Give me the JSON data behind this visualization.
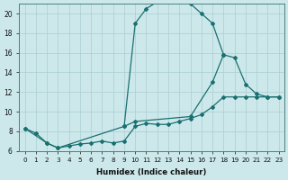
{
  "bg_color": "#cce8eb",
  "line_color": "#1a7070",
  "grid_color": "#aacdd2",
  "xlabel": "Humidex (Indice chaleur)",
  "xlim": [
    -0.5,
    23.5
  ],
  "ylim": [
    6,
    21
  ],
  "yticks": [
    6,
    8,
    10,
    12,
    14,
    16,
    18,
    20
  ],
  "xticks": [
    0,
    1,
    2,
    3,
    4,
    5,
    6,
    7,
    8,
    9,
    10,
    11,
    12,
    13,
    14,
    15,
    16,
    17,
    18,
    19,
    20,
    21,
    22,
    23
  ],
  "line_big_x": [
    9,
    10,
    11,
    12,
    13,
    14,
    15,
    16,
    17,
    18
  ],
  "line_big_y": [
    8.5,
    19.0,
    20.5,
    21.2,
    21.5,
    21.3,
    21.0,
    20.0,
    19.0,
    15.8
  ],
  "line_mid_x": [
    0,
    2,
    3,
    9,
    10,
    15,
    17,
    18,
    19,
    20,
    21,
    22,
    23
  ],
  "line_mid_y": [
    8.3,
    6.8,
    6.3,
    8.5,
    9.0,
    9.5,
    13.0,
    15.8,
    15.5,
    12.8,
    11.8,
    11.5,
    11.5
  ],
  "line_low_x": [
    0,
    1,
    2,
    3,
    4,
    5,
    6,
    7,
    8,
    9,
    10,
    11,
    12,
    13,
    14,
    15,
    16,
    17,
    18,
    19,
    20,
    21,
    22,
    23
  ],
  "line_low_y": [
    8.3,
    7.8,
    6.8,
    6.3,
    6.5,
    6.7,
    6.8,
    7.0,
    6.8,
    7.0,
    8.5,
    8.8,
    8.7,
    8.7,
    9.0,
    9.3,
    9.7,
    10.5,
    11.5,
    11.5,
    11.5,
    11.5,
    11.5,
    11.5
  ]
}
